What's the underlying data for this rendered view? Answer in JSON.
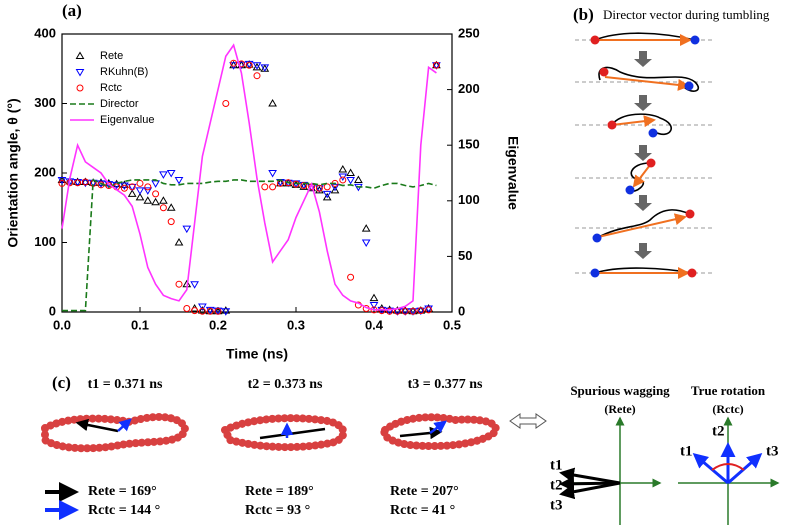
{
  "chart_data": {
    "type": "scatter",
    "panel_label": "(a)",
    "x_label": "Time (ns)",
    "y_label": "Orientation angle, θ (°)",
    "y2_label": "Eigenvalue",
    "xlim": [
      0,
      0.5
    ],
    "xticks": [
      {
        "value": 0,
        "label": "0.0"
      },
      0.1,
      0.2,
      0.3,
      0.4,
      0.5
    ],
    "ylim": [
      0,
      400
    ],
    "yticks": [
      0,
      100,
      200,
      300,
      400
    ],
    "y2lim": [
      0,
      250
    ],
    "y2ticks": [
      0,
      50,
      100,
      150,
      200,
      250
    ],
    "x": [
      0,
      0.01,
      0.02,
      0.03,
      0.04,
      0.05,
      0.06,
      0.07,
      0.08,
      0.09,
      0.1,
      0.11,
      0.12,
      0.13,
      0.14,
      0.15,
      0.16,
      0.17,
      0.18,
      0.19,
      0.2,
      0.21,
      0.22,
      0.23,
      0.24,
      0.25,
      0.26,
      0.27,
      0.28,
      0.29,
      0.3,
      0.31,
      0.32,
      0.33,
      0.34,
      0.35,
      0.36,
      0.37,
      0.38,
      0.39,
      0.4,
      0.41,
      0.42,
      0.43,
      0.44,
      0.45,
      0.46,
      0.47,
      0.48
    ],
    "series": [
      {
        "name": "Rete",
        "color": "#000000",
        "marker": "triangle",
        "values": [
          190,
          188,
          187,
          187,
          186,
          186,
          185,
          184,
          183,
          170,
          165,
          160,
          158,
          160,
          150,
          100,
          40,
          5,
          2,
          1,
          1,
          2,
          355,
          355,
          356,
          352,
          350,
          300,
          185,
          185,
          183,
          180,
          178,
          175,
          165,
          175,
          205,
          200,
          190,
          120,
          20,
          5,
          3,
          2,
          2,
          1,
          2,
          5,
          355
        ]
      },
      {
        "name": "RKuhn(B)",
        "color": "#0000ff",
        "marker": "triangle-down",
        "values": [
          190,
          188,
          187,
          186,
          186,
          185,
          184,
          183,
          182,
          180,
          175,
          175,
          185,
          198,
          200,
          190,
          120,
          40,
          8,
          3,
          2,
          1,
          355,
          356,
          357,
          355,
          352,
          200,
          187,
          186,
          185,
          183,
          180,
          178,
          170,
          180,
          195,
          190,
          180,
          100,
          10,
          3,
          2,
          1,
          1,
          1,
          2,
          5,
          355
        ]
      },
      {
        "name": "Rctc",
        "color": "#ff0000",
        "marker": "circle",
        "values": [
          185,
          186,
          186,
          187,
          185,
          183,
          182,
          180,
          178,
          180,
          185,
          180,
          170,
          150,
          130,
          40,
          5,
          2,
          1,
          1,
          1,
          300,
          358,
          357,
          355,
          340,
          180,
          180,
          185,
          186,
          184,
          182,
          180,
          178,
          180,
          185,
          190,
          50,
          10,
          5,
          3,
          2,
          1,
          1,
          1,
          1,
          2,
          3,
          355
        ]
      },
      {
        "name": "Director",
        "color": "#1a7a1a",
        "marker": "dashed",
        "values": [
          2,
          2,
          2,
          2,
          190,
          185,
          180,
          185,
          188,
          190,
          190,
          190,
          190,
          185,
          183,
          183,
          185,
          185,
          185,
          187,
          188,
          188,
          190,
          190,
          188,
          188,
          188,
          188,
          190,
          186,
          185,
          185,
          185,
          183,
          185,
          185,
          182,
          183,
          180,
          180,
          178,
          182,
          185,
          185,
          182,
          180,
          182,
          185,
          182
        ]
      },
      {
        "name": "Eigenvalue",
        "color": "#ff33ff",
        "marker": "line",
        "axis": "y2",
        "values": [
          75,
          120,
          150,
          135,
          130,
          125,
          115,
          110,
          105,
          95,
          70,
          40,
          25,
          15,
          12,
          10,
          20,
          80,
          140,
          170,
          200,
          230,
          240,
          215,
          170,
          120,
          80,
          45,
          55,
          65,
          85,
          100,
          115,
          90,
          55,
          25,
          15,
          10,
          8,
          4,
          2,
          2,
          2,
          3,
          5,
          10,
          150,
          220,
          215
        ]
      }
    ]
  },
  "panel_b": {
    "label": "(b)",
    "title": "Director vector during tumbling"
  },
  "panel_c": {
    "label": "(c)",
    "snapshots": [
      {
        "time": "t1 = 0.371 ns",
        "ete": "Rete = 169°",
        "ctc": "Rctc = 144 °"
      },
      {
        "time": "t2 = 0.373 ns",
        "ete": "Rete = 189°",
        "ctc": "Rctc = 93 °"
      },
      {
        "time": "t3 = 0.377 ns",
        "ete": "Rete = 207°",
        "ctc": "Rctc = 41 °"
      }
    ],
    "wagging": {
      "title": "Spurious wagging",
      "subtitle": "(Rete)",
      "labels": [
        "t1",
        "t2",
        "t3"
      ]
    },
    "rotation": {
      "title": "True rotation",
      "subtitle": "(Rctc)",
      "labels": [
        "t1",
        "t2",
        "t3"
      ]
    }
  }
}
